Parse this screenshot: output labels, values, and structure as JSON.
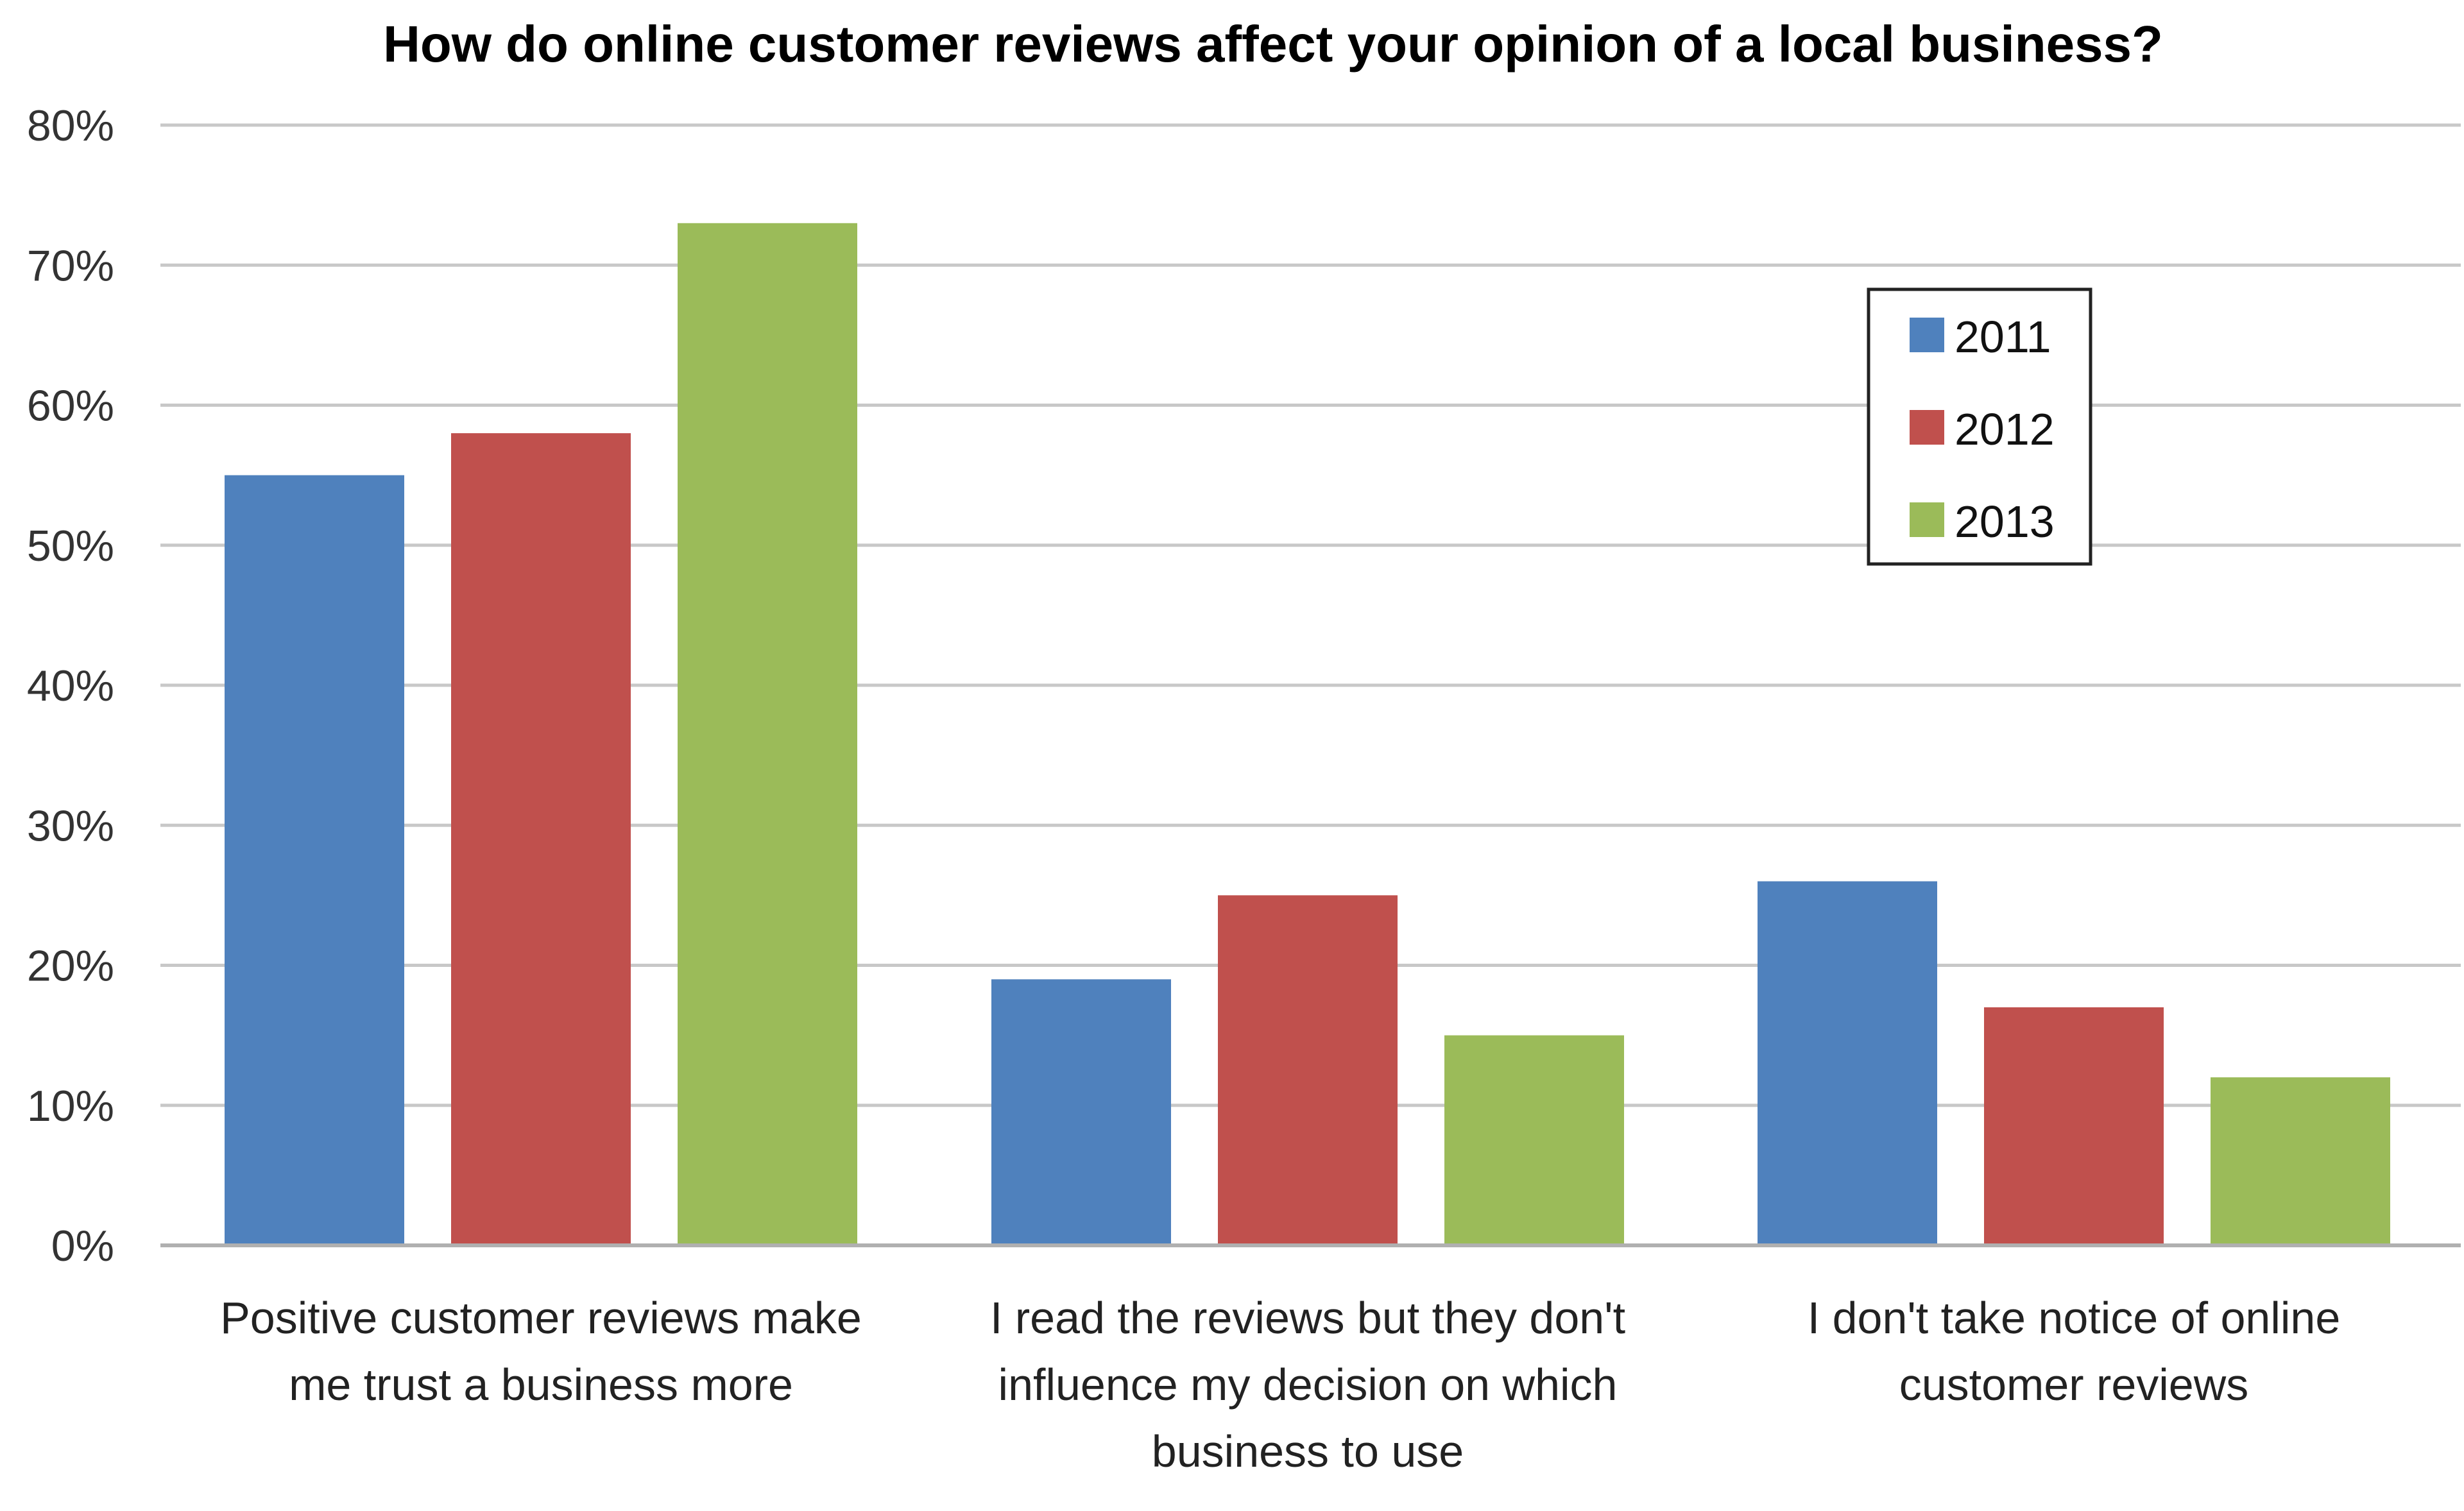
{
  "chart_data": {
    "type": "bar",
    "title": "How do online customer reviews affect your opinion of a local business?",
    "xlabel": "",
    "ylabel": "",
    "ylim": [
      0,
      80
    ],
    "yticks": [
      "0%",
      "10%",
      "20%",
      "30%",
      "40%",
      "50%",
      "60%",
      "70%",
      "80%"
    ],
    "categories": [
      [
        "Positive customer reviews make",
        "me trust a business more"
      ],
      [
        "I read the reviews but they don't",
        "influence my decision on which",
        "business to use"
      ],
      [
        "I don't take notice of online",
        "customer reviews"
      ]
    ],
    "series": [
      {
        "name": "2011",
        "color": "#4f81bd",
        "values": [
          55,
          19,
          26
        ]
      },
      {
        "name": "2012",
        "color": "#c0504d",
        "values": [
          58,
          25,
          17
        ]
      },
      {
        "name": "2013",
        "color": "#9bbb59",
        "values": [
          73,
          15,
          12
        ]
      }
    ],
    "grid": true,
    "legend": "top-right"
  }
}
